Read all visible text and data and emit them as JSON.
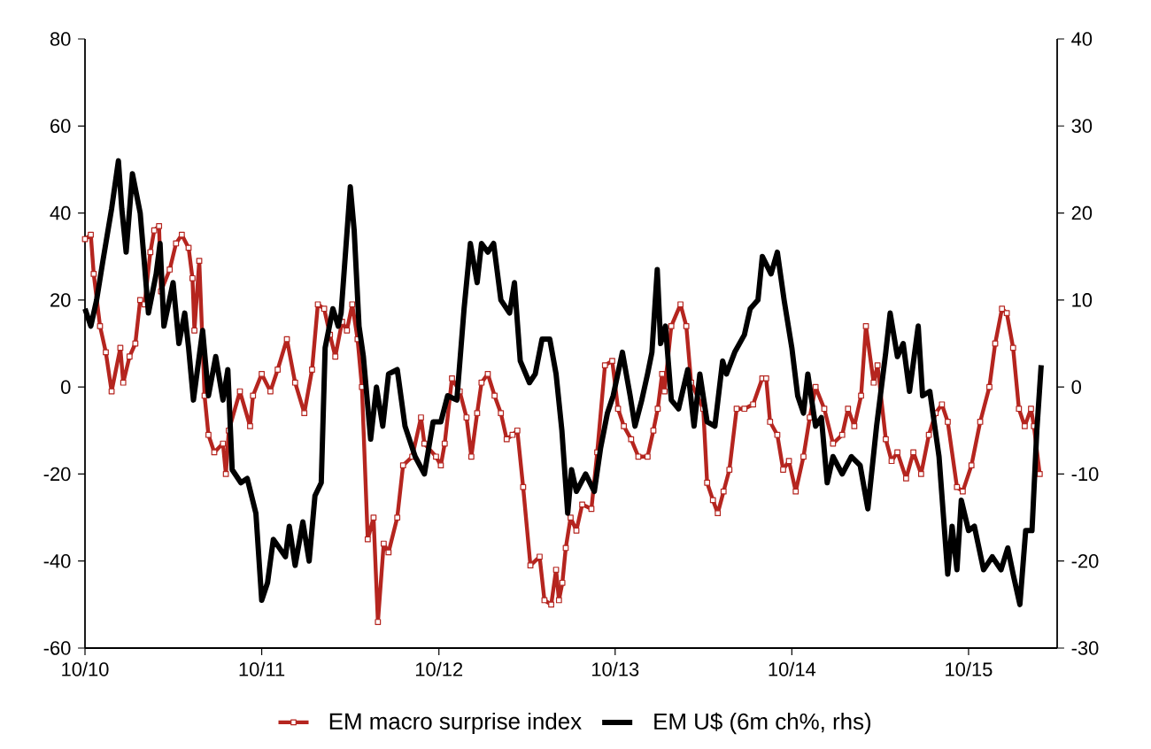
{
  "chart_data": {
    "type": "line",
    "xlim": [
      "2010-10-01",
      "2016-04-01"
    ],
    "xticks": [
      {
        "value": "2010-10-01",
        "label": "10/10"
      },
      {
        "value": "2011-10-01",
        "label": "10/11"
      },
      {
        "value": "2012-10-01",
        "label": "10/12"
      },
      {
        "value": "2013-10-01",
        "label": "10/13"
      },
      {
        "value": "2014-10-01",
        "label": "10/14"
      },
      {
        "value": "2015-10-01",
        "label": "10/15"
      }
    ],
    "ylim": [
      -60,
      80
    ],
    "yticks": [
      -60,
      -40,
      -20,
      0,
      20,
      40,
      60,
      80
    ],
    "y2lim": [
      -30,
      40
    ],
    "y2ticks": [
      -30,
      -20,
      -10,
      0,
      10,
      20,
      30,
      40
    ],
    "legend": "bottom",
    "series": [
      {
        "name": "EM macro surprise index",
        "color": "#b5251f",
        "marker": "square",
        "x": [
          "2010-10-01",
          "2010-10-13",
          "2010-10-19",
          "2010-11-01",
          "2010-11-13",
          "2010-11-25",
          "2010-12-13",
          "2010-12-19",
          "2011-01-01",
          "2011-01-13",
          "2011-01-23",
          "2011-02-01",
          "2011-02-13",
          "2011-02-21",
          "2011-03-03",
          "2011-03-07",
          "2011-03-25",
          "2011-04-07",
          "2011-04-19",
          "2011-05-03",
          "2011-05-11",
          "2011-05-15",
          "2011-05-25",
          "2011-06-05",
          "2011-06-13",
          "2011-06-25",
          "2011-07-13",
          "2011-07-19",
          "2011-07-25",
          "2011-08-17",
          "2011-09-07",
          "2011-09-13",
          "2011-10-01",
          "2011-10-19",
          "2011-11-03",
          "2011-11-22",
          "2011-12-09",
          "2011-12-28",
          "2012-01-13",
          "2012-01-25",
          "2012-02-07",
          "2012-02-19",
          "2012-03-01",
          "2012-03-15",
          "2012-03-25",
          "2012-04-05",
          "2012-04-16",
          "2012-04-25",
          "2012-05-07",
          "2012-05-19",
          "2012-05-28",
          "2012-06-09",
          "2012-06-19",
          "2012-07-07",
          "2012-07-19",
          "2012-08-07",
          "2012-08-25",
          "2012-09-01",
          "2012-09-25",
          "2012-10-05",
          "2012-10-13",
          "2012-10-28",
          "2012-11-13",
          "2012-11-27",
          "2012-12-07",
          "2012-12-19",
          "2012-12-28",
          "2013-01-11",
          "2013-01-25",
          "2013-02-07",
          "2013-02-19",
          "2013-03-03",
          "2013-03-13",
          "2013-03-25",
          "2013-04-09",
          "2013-04-28",
          "2013-05-08",
          "2013-05-22",
          "2013-06-01",
          "2013-06-07",
          "2013-06-14",
          "2013-06-21",
          "2013-07-01",
          "2013-07-13",
          "2013-07-25",
          "2013-08-13",
          "2013-08-25",
          "2013-09-10",
          "2013-09-25",
          "2013-10-07",
          "2013-10-19",
          "2013-11-03",
          "2013-11-18",
          "2013-12-07",
          "2013-12-19",
          "2013-12-28",
          "2014-01-06",
          "2014-01-11",
          "2014-01-25",
          "2014-02-13",
          "2014-02-25",
          "2014-03-07",
          "2014-04-01",
          "2014-04-09",
          "2014-04-21",
          "2014-05-01",
          "2014-05-13",
          "2014-05-25",
          "2014-06-09",
          "2014-06-25",
          "2014-07-13",
          "2014-08-01",
          "2014-08-09",
          "2014-08-17",
          "2014-09-01",
          "2014-09-13",
          "2014-09-25",
          "2014-10-09",
          "2014-10-25",
          "2014-11-07",
          "2014-11-19",
          "2014-12-07",
          "2014-12-25",
          "2015-01-13",
          "2015-01-25",
          "2015-02-07",
          "2015-02-21",
          "2015-03-03",
          "2015-03-19",
          "2015-03-27",
          "2015-04-13",
          "2015-04-25",
          "2015-05-07",
          "2015-05-25",
          "2015-06-09",
          "2015-06-25",
          "2015-07-11",
          "2015-07-25",
          "2015-08-07",
          "2015-08-19",
          "2015-09-07",
          "2015-09-19",
          "2015-10-07",
          "2015-10-25",
          "2015-11-13",
          "2015-11-25",
          "2015-12-09",
          "2015-12-19",
          "2016-01-01",
          "2016-01-13",
          "2016-01-25",
          "2016-02-07",
          "2016-02-13",
          "2016-02-25"
        ],
        "values": [
          34,
          35,
          26,
          14,
          8,
          -1,
          9,
          1,
          7,
          10,
          20,
          19,
          31,
          36,
          37,
          22,
          27,
          33,
          35,
          32,
          25,
          13,
          29,
          -2,
          -11,
          -15,
          -13,
          -20,
          -10,
          -1,
          -9,
          -2,
          3,
          -1,
          4,
          11,
          1,
          -6,
          4,
          19,
          18,
          12,
          7,
          15,
          13,
          19,
          11,
          0,
          -35,
          -30,
          -54,
          -36,
          -38,
          -30,
          -18,
          -16,
          -7,
          -13,
          -16,
          -18,
          -13,
          2,
          -1,
          -7,
          -16,
          -6,
          1,
          3,
          -2,
          -6,
          -12,
          -11,
          -10,
          -23,
          -41,
          -39,
          -49,
          -50,
          -42,
          -49,
          -45,
          -37,
          -30,
          -33,
          -27,
          -28,
          -15,
          5,
          6,
          -5,
          -9,
          -12,
          -16,
          -16,
          -10,
          -5,
          3,
          -1,
          14,
          19,
          14,
          1,
          -5,
          -22,
          -26,
          -29,
          -24,
          -19,
          -5,
          -5,
          -4,
          2,
          2,
          -8,
          -11,
          -19,
          -17,
          -24,
          -16,
          -7,
          0,
          -5,
          -13,
          -11,
          -5,
          -9,
          -2,
          14,
          1,
          5,
          -12,
          -17,
          -15,
          -21,
          -15,
          -20,
          -11,
          -6,
          -4,
          -8,
          -23,
          -24,
          -18,
          -8,
          0,
          10,
          18,
          17,
          9,
          -5,
          -9,
          -5,
          -9,
          -20
        ]
      },
      {
        "name": "EM U$ (6m ch%, rhs)",
        "color": "#000000",
        "marker": "none",
        "axis": "y2",
        "x": [
          "2010-10-01",
          "2010-10-13",
          "2010-10-25",
          "2010-11-07",
          "2010-11-25",
          "2010-12-09",
          "2010-12-16",
          "2010-12-25",
          "2011-01-07",
          "2011-01-23",
          "2011-02-01",
          "2011-02-09",
          "2011-02-25",
          "2011-03-05",
          "2011-03-13",
          "2011-04-01",
          "2011-04-13",
          "2011-04-25",
          "2011-05-03",
          "2011-05-13",
          "2011-06-01",
          "2011-06-13",
          "2011-06-28",
          "2011-07-13",
          "2011-07-23",
          "2011-08-01",
          "2011-08-19",
          "2011-09-01",
          "2011-09-19",
          "2011-10-01",
          "2011-10-13",
          "2011-10-25",
          "2011-11-19",
          "2011-11-27",
          "2011-12-09",
          "2011-12-25",
          "2012-01-07",
          "2012-01-19",
          "2012-02-01",
          "2012-02-09",
          "2012-02-25",
          "2012-03-07",
          "2012-03-13",
          "2012-04-01",
          "2012-04-09",
          "2012-04-19",
          "2012-04-28",
          "2012-05-13",
          "2012-05-25",
          "2012-06-07",
          "2012-06-19",
          "2012-07-07",
          "2012-07-23",
          "2012-08-13",
          "2012-09-01",
          "2012-09-19",
          "2012-10-05",
          "2012-10-19",
          "2012-11-07",
          "2012-11-22",
          "2012-12-05",
          "2012-12-19",
          "2012-12-28",
          "2013-01-11",
          "2013-01-23",
          "2013-02-07",
          "2013-02-25",
          "2013-03-07",
          "2013-03-19",
          "2013-04-07",
          "2013-04-19",
          "2013-05-03",
          "2013-05-19",
          "2013-06-01",
          "2013-06-13",
          "2013-06-25",
          "2013-07-03",
          "2013-07-13",
          "2013-08-01",
          "2013-08-19",
          "2013-09-01",
          "2013-09-15",
          "2013-09-27",
          "2013-10-16",
          "2013-11-01",
          "2013-11-11",
          "2013-11-25",
          "2013-12-07",
          "2013-12-16",
          "2013-12-27",
          "2014-01-03",
          "2014-01-13",
          "2014-01-25",
          "2014-02-09",
          "2014-02-28",
          "2014-03-13",
          "2014-03-25",
          "2014-04-09",
          "2014-04-25",
          "2014-05-11",
          "2014-05-19",
          "2014-06-05",
          "2014-06-25",
          "2014-07-07",
          "2014-07-23",
          "2014-08-01",
          "2014-08-19",
          "2014-09-01",
          "2014-09-15",
          "2014-10-01",
          "2014-10-13",
          "2014-10-25",
          "2014-11-03",
          "2014-11-19",
          "2014-12-01",
          "2014-12-13",
          "2014-12-25",
          "2015-01-13",
          "2015-02-01",
          "2015-02-19",
          "2015-03-07",
          "2015-03-25",
          "2015-04-13",
          "2015-04-22",
          "2015-05-07",
          "2015-05-19",
          "2015-06-01",
          "2015-06-19",
          "2015-06-28",
          "2015-07-13",
          "2015-08-01",
          "2015-08-19",
          "2015-08-28",
          "2015-09-07",
          "2015-09-16",
          "2015-10-01",
          "2015-10-13",
          "2015-11-01",
          "2015-11-19",
          "2015-12-07",
          "2015-12-21",
          "2016-01-01",
          "2016-01-15",
          "2016-01-27",
          "2016-02-09",
          "2016-02-19",
          "2016-02-28"
        ],
        "values": [
          9,
          7,
          10,
          14.5,
          20.5,
          26,
          20.5,
          15.5,
          24.5,
          20,
          14,
          8.5,
          13,
          16.5,
          7,
          12,
          5,
          8.5,
          4.5,
          -1.5,
          6.5,
          -1,
          3.5,
          -1.5,
          2,
          -9.5,
          -11,
          -10.5,
          -14.5,
          -24.5,
          -22.5,
          -17.5,
          -19.5,
          -16,
          -20.5,
          -15.5,
          -20,
          -12.5,
          -11,
          4.5,
          9,
          7,
          8.5,
          23,
          18,
          7,
          3.5,
          -6,
          0,
          -4.5,
          1.5,
          2,
          -4.5,
          -8,
          -10,
          -4,
          -4,
          -1,
          -1.5,
          9,
          16.5,
          12,
          16.5,
          15.5,
          16.5,
          10,
          8.5,
          12,
          3,
          0.5,
          1.5,
          5.5,
          5.5,
          1.5,
          -5,
          -14.5,
          -9.5,
          -12,
          -10,
          -12,
          -7,
          -3,
          -1,
          4,
          -1,
          -4.5,
          -1.5,
          1.5,
          4,
          13.5,
          5,
          7,
          -1.5,
          -2.5,
          2,
          -4.5,
          1.5,
          -4,
          -4.5,
          3,
          1.5,
          4,
          6,
          9,
          10,
          15,
          13,
          15.5,
          10,
          4.5,
          -1,
          -3,
          1.5,
          -4.5,
          -3.5,
          -11,
          -8,
          -10,
          -8,
          -9,
          -14,
          -4.5,
          4,
          8.5,
          3.5,
          5,
          -0.5,
          7,
          -1,
          -0.5,
          -8,
          -21.5,
          -16,
          -21,
          -13,
          -16.5,
          -16,
          -21,
          -19.5,
          -21,
          -18.5,
          -21.5,
          -25,
          -16.5,
          -16.5,
          -5,
          2.5
        ]
      }
    ]
  }
}
